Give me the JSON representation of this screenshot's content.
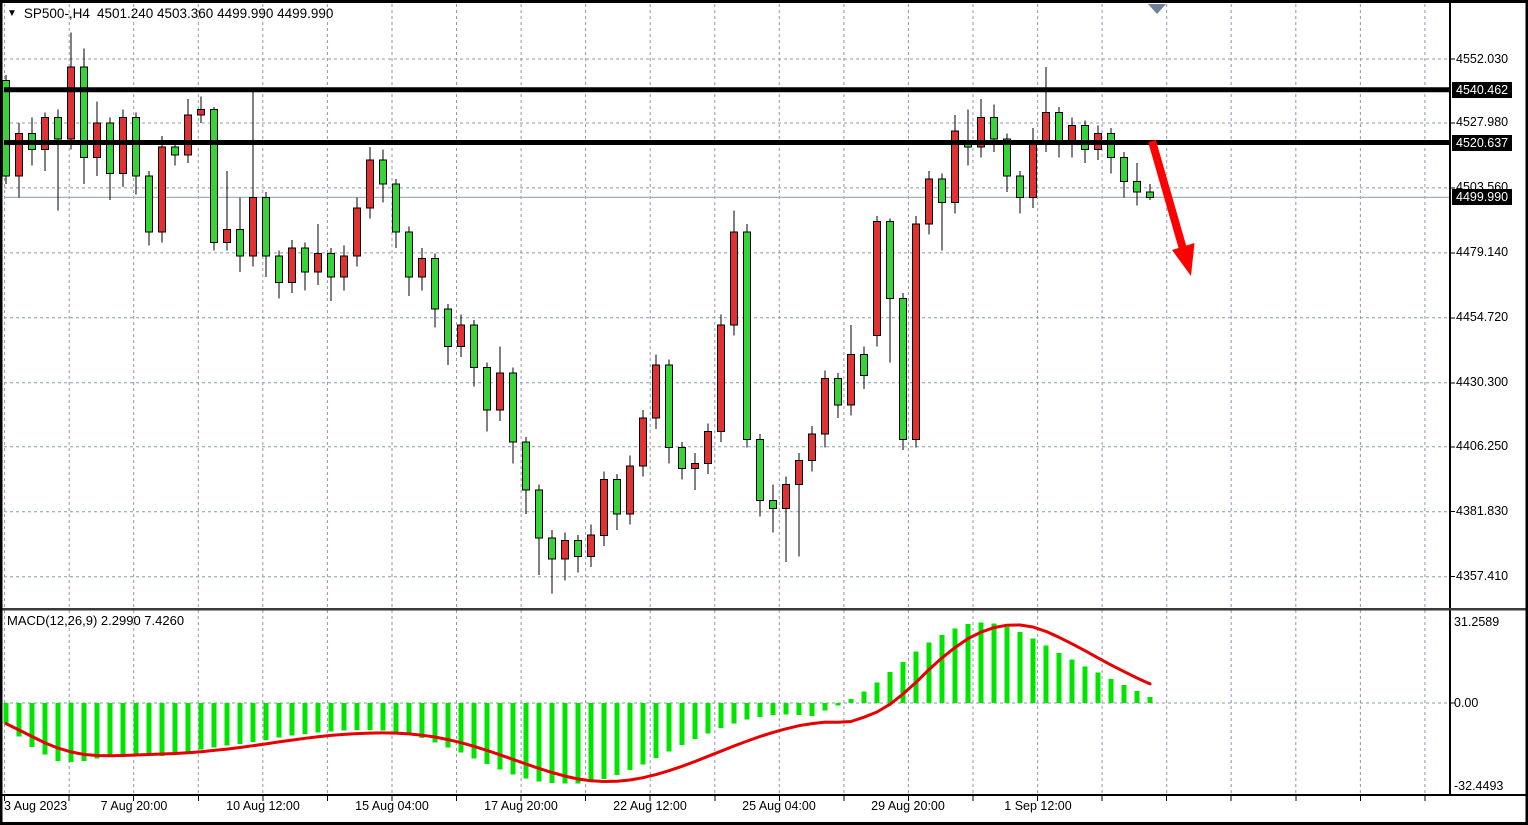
{
  "window": {
    "symbol_period": "SP500-,H4",
    "ohlc_text": "4501.240 4503.360 4499.990 4499.990",
    "collapse_icon": "down-triangle"
  },
  "colors": {
    "background": "#ffffff",
    "bull_candle": "#e03232",
    "bear_candle": "#37d437",
    "candle_outline": "#000000",
    "macd_histogram": "#00e400",
    "macd_signal": "#e60000",
    "grid": "#8a9aae",
    "level_line": "#000000",
    "current_price_line": "#9fafc0",
    "arrow": "#ff0000",
    "badge_bg": "#000000",
    "badge_fg": "#ffffff",
    "bar_marker": "#6f8299",
    "border": "#000000"
  },
  "price_axis": {
    "labels": [
      "4552.030",
      "4527.980",
      "4503.560",
      "4479.140",
      "4454.720",
      "4430.300",
      "4406.250",
      "4381.830",
      "4357.410"
    ],
    "badges": [
      {
        "text": "4540.462",
        "price": 4540.462,
        "kind": "resistance-level"
      },
      {
        "text": "4520.637",
        "price": 4520.637,
        "kind": "support-level"
      },
      {
        "text": "4499.990",
        "price": 4499.99,
        "kind": "current-price"
      }
    ]
  },
  "time_axis": {
    "labels": [
      "3 Aug 2023",
      "7 Aug 20:00",
      "10 Aug 12:00",
      "15 Aug 04:00",
      "17 Aug 20:00",
      "22 Aug 12:00",
      "25 Aug 04:00",
      "29 Aug 20:00",
      "1 Sep 12:00"
    ]
  },
  "macd_panel": {
    "indicator_label": "MACD(12,26,9) 2.2990 7.4260",
    "axis_top": "31.2589",
    "axis_zero": "0.00",
    "axis_bottom": "-32.4493"
  },
  "chart_data": {
    "type": "candlestick",
    "title": "SP500-,H4",
    "symbol": "SP500",
    "period": "H4",
    "last_bar": {
      "open": 4501.24,
      "high": 4503.36,
      "low": 4499.99,
      "close": 4499.99
    },
    "bull_drawn_as": "red",
    "bear_drawn_as": "green",
    "resistance_level": 4540.462,
    "support_level": 4520.637,
    "current_price": 4499.99,
    "price_gridlines": [
      4552.03,
      4527.98,
      4503.56,
      4479.14,
      4454.72,
      4430.3,
      4406.25,
      4381.83,
      4357.41
    ],
    "x_tick_labels": [
      "3 Aug 2023",
      "7 Aug 20:00",
      "10 Aug 12:00",
      "15 Aug 04:00",
      "17 Aug 20:00",
      "22 Aug 12:00",
      "25 Aug 04:00",
      "29 Aug 20:00",
      "1 Sep 12:00"
    ],
    "annotation": "thick red arrow pointing down-right below broken support, after last bar",
    "candles_ohlc": [
      [
        4544,
        4546,
        4505,
        4508
      ],
      [
        4508,
        4528,
        4500,
        4524
      ],
      [
        4524,
        4530,
        4512,
        4518
      ],
      [
        4518,
        4532,
        4510,
        4530
      ],
      [
        4530,
        4533,
        4495,
        4522
      ],
      [
        4522,
        4562,
        4518,
        4549
      ],
      [
        4549,
        4556,
        4505,
        4515
      ],
      [
        4515,
        4536,
        4508,
        4528
      ],
      [
        4528,
        4530,
        4499,
        4509
      ],
      [
        4509,
        4533,
        4504,
        4530
      ],
      [
        4530,
        4532,
        4501,
        4508
      ],
      [
        4508,
        4510,
        4482,
        4487
      ],
      [
        4487,
        4523,
        4483,
        4519
      ],
      [
        4519,
        4521,
        4512,
        4516
      ],
      [
        4516,
        4537,
        4513,
        4531
      ],
      [
        4531,
        4538,
        4528,
        4533
      ],
      [
        4533,
        4534,
        4480,
        4483
      ],
      [
        4483,
        4510,
        4480,
        4488
      ],
      [
        4488,
        4500,
        4472,
        4478
      ],
      [
        4478,
        4540,
        4474,
        4500
      ],
      [
        4500,
        4502,
        4470,
        4478
      ],
      [
        4478,
        4480,
        4462,
        4468
      ],
      [
        4468,
        4484,
        4464,
        4481
      ],
      [
        4481,
        4483,
        4465,
        4472
      ],
      [
        4472,
        4490,
        4467,
        4479
      ],
      [
        4479,
        4481,
        4461,
        4470
      ],
      [
        4470,
        4482,
        4465,
        4478
      ],
      [
        4478,
        4500,
        4474,
        4496
      ],
      [
        4496,
        4519,
        4492,
        4514
      ],
      [
        4514,
        4518,
        4498,
        4505
      ],
      [
        4505,
        4507,
        4481,
        4487
      ],
      [
        4487,
        4489,
        4463,
        4470
      ],
      [
        4470,
        4481,
        4465,
        4477
      ],
      [
        4477,
        4479,
        4451,
        4458
      ],
      [
        4458,
        4460,
        4437,
        4444
      ],
      [
        4444,
        4456,
        4440,
        4452
      ],
      [
        4452,
        4454,
        4429,
        4436
      ],
      [
        4436,
        4438,
        4412,
        4420
      ],
      [
        4420,
        4444,
        4416,
        4434
      ],
      [
        4434,
        4436,
        4400,
        4408
      ],
      [
        4408,
        4410,
        4381,
        4390
      ],
      [
        4390,
        4392,
        4358,
        4372
      ],
      [
        4372,
        4375,
        4351,
        4364
      ],
      [
        4364,
        4374,
        4356,
        4371
      ],
      [
        4371,
        4373,
        4359,
        4365
      ],
      [
        4365,
        4377,
        4361,
        4373
      ],
      [
        4373,
        4397,
        4369,
        4394
      ],
      [
        4394,
        4396,
        4375,
        4381
      ],
      [
        4381,
        4403,
        4377,
        4399
      ],
      [
        4399,
        4420,
        4395,
        4417
      ],
      [
        4417,
        4441,
        4413,
        4437
      ],
      [
        4437,
        4439,
        4400,
        4406
      ],
      [
        4406,
        4408,
        4394,
        4398
      ],
      [
        4398,
        4404,
        4390,
        4400
      ],
      [
        4400,
        4415,
        4396,
        4412
      ],
      [
        4412,
        4456,
        4408,
        4452
      ],
      [
        4452,
        4495,
        4448,
        4487
      ],
      [
        4487,
        4490,
        4406,
        4409
      ],
      [
        4409,
        4411,
        4380,
        4386
      ],
      [
        4386,
        4392,
        4374,
        4383
      ],
      [
        4383,
        4395,
        4363,
        4392
      ],
      [
        4392,
        4404,
        4365,
        4401
      ],
      [
        4401,
        4414,
        4397,
        4411
      ],
      [
        4411,
        4435,
        4406,
        4432
      ],
      [
        4432,
        4434,
        4417,
        4422
      ],
      [
        4422,
        4452,
        4418,
        4441
      ],
      [
        4441,
        4444,
        4428,
        4433
      ],
      [
        4448,
        4493,
        4444,
        4491
      ],
      [
        4491,
        4492,
        4438,
        4462
      ],
      [
        4462,
        4464,
        4405,
        4409
      ],
      [
        4409,
        4493,
        4406,
        4490
      ],
      [
        4490,
        4510,
        4486,
        4507
      ],
      [
        4507,
        4509,
        4480,
        4498
      ],
      [
        4498,
        4531,
        4494,
        4525
      ],
      [
        4520,
        4533,
        4512,
        4519
      ],
      [
        4519,
        4537,
        4515,
        4530
      ],
      [
        4530,
        4535,
        4517,
        4522
      ],
      [
        4522,
        4524,
        4502,
        4508
      ],
      [
        4508,
        4510,
        4494,
        4500
      ],
      [
        4500,
        4526,
        4496,
        4521
      ],
      [
        4521,
        4549,
        4517,
        4532
      ],
      [
        4532,
        4534,
        4515,
        4520
      ],
      [
        4520,
        4530,
        4515,
        4527
      ],
      [
        4527,
        4529,
        4513,
        4518
      ],
      [
        4518,
        4527,
        4514,
        4524
      ],
      [
        4524,
        4526,
        4509,
        4515
      ],
      [
        4515,
        4517,
        4500,
        4506
      ],
      [
        4506,
        4513,
        4497,
        4502
      ],
      [
        4502,
        4505,
        4499,
        4500
      ]
    ],
    "macd": {
      "params": [
        12,
        26,
        9
      ],
      "macd_value": 2.299,
      "signal_value": 7.426,
      "ylim": [
        -32.4493,
        31.2589
      ],
      "histogram": [
        -8,
        -13,
        -17,
        -20,
        -22.5,
        -23,
        -22.5,
        -21.5,
        -20.8,
        -20.3,
        -20,
        -20.2,
        -20.5,
        -20,
        -19,
        -18,
        -17.3,
        -16.6,
        -16,
        -15.2,
        -14.3,
        -13.4,
        -12.6,
        -12,
        -11.5,
        -11,
        -10.7,
        -10.5,
        -10.4,
        -10.6,
        -11.2,
        -12.2,
        -13.6,
        -15.3,
        -17.2,
        -19.3,
        -21.5,
        -23.7,
        -25.8,
        -27.7,
        -29.3,
        -30.4,
        -31,
        -31.3,
        -31.2,
        -30.6,
        -29.5,
        -28,
        -26,
        -23.8,
        -21.4,
        -18.9,
        -16.4,
        -14,
        -11.8,
        -9.8,
        -8,
        -6.5,
        -5.4,
        -4.7,
        -4.4,
        -4.7,
        -5,
        -3,
        -1,
        1.5,
        4.5,
        8,
        12,
        16,
        20,
        23.5,
        26.5,
        29,
        30.7,
        31.3,
        30.8,
        29.5,
        27.5,
        25,
        22.3,
        19.5,
        16.8,
        14.2,
        11.8,
        9.4,
        7,
        4.6,
        2.3
      ],
      "signal_line": [
        -8,
        -10.5,
        -13,
        -15.5,
        -17.5,
        -19,
        -20,
        -20.4,
        -20.5,
        -20.4,
        -20.2,
        -20,
        -19.8,
        -19.6,
        -19.3,
        -18.9,
        -18.4,
        -17.9,
        -17.3,
        -16.6,
        -15.9,
        -15.1,
        -14.4,
        -13.7,
        -13.1,
        -12.6,
        -12.2,
        -11.9,
        -11.7,
        -11.6,
        -11.7,
        -12,
        -12.5,
        -13.2,
        -14.2,
        -15.4,
        -16.8,
        -18.4,
        -20.1,
        -21.9,
        -23.7,
        -25.4,
        -27,
        -28.4,
        -29.5,
        -30.2,
        -30.5,
        -30.4,
        -29.9,
        -29,
        -27.8,
        -26.3,
        -24.6,
        -22.7,
        -20.7,
        -18.7,
        -16.7,
        -14.8,
        -13,
        -11.4,
        -10,
        -8.8,
        -8,
        -7.4,
        -7.5,
        -7.2,
        -5.5,
        -3.5,
        -0.5,
        3.5,
        8,
        13,
        17.5,
        21.5,
        25,
        27.5,
        29.3,
        30.2,
        30.3,
        29.5,
        27.8,
        25.5,
        23,
        20.3,
        17.5,
        14.8,
        12.2,
        9.7,
        7.4
      ]
    }
  }
}
